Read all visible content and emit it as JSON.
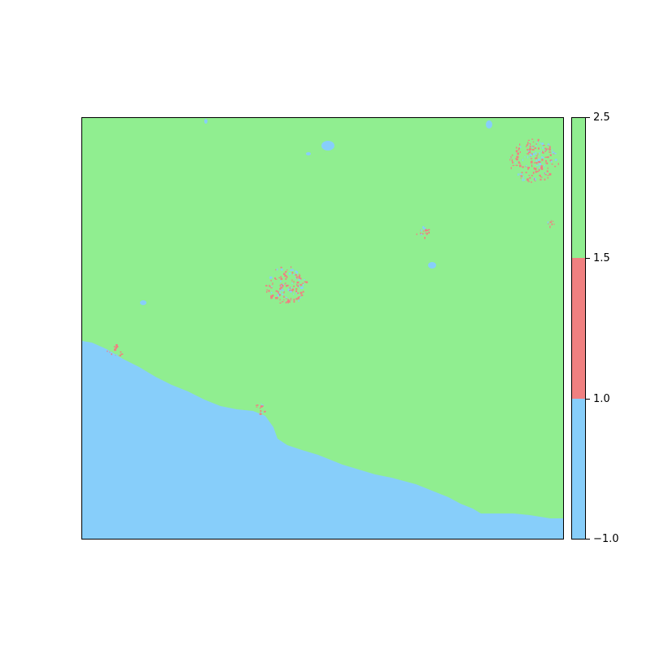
{
  "legend": {
    "ticks": [
      "2.5",
      "1.5",
      "1.0",
      "−1.0"
    ],
    "classes": [
      {
        "range": [
          1.5,
          2.5
        ],
        "color": "#90ee90"
      },
      {
        "range": [
          1.0,
          1.5
        ],
        "color": "#f08080"
      },
      {
        "range": [
          -1.0,
          1.0
        ],
        "color": "#87cefa"
      }
    ]
  },
  "colors": {
    "land": "#90ee90",
    "urban": "#f08080",
    "water": "#87cefa"
  }
}
